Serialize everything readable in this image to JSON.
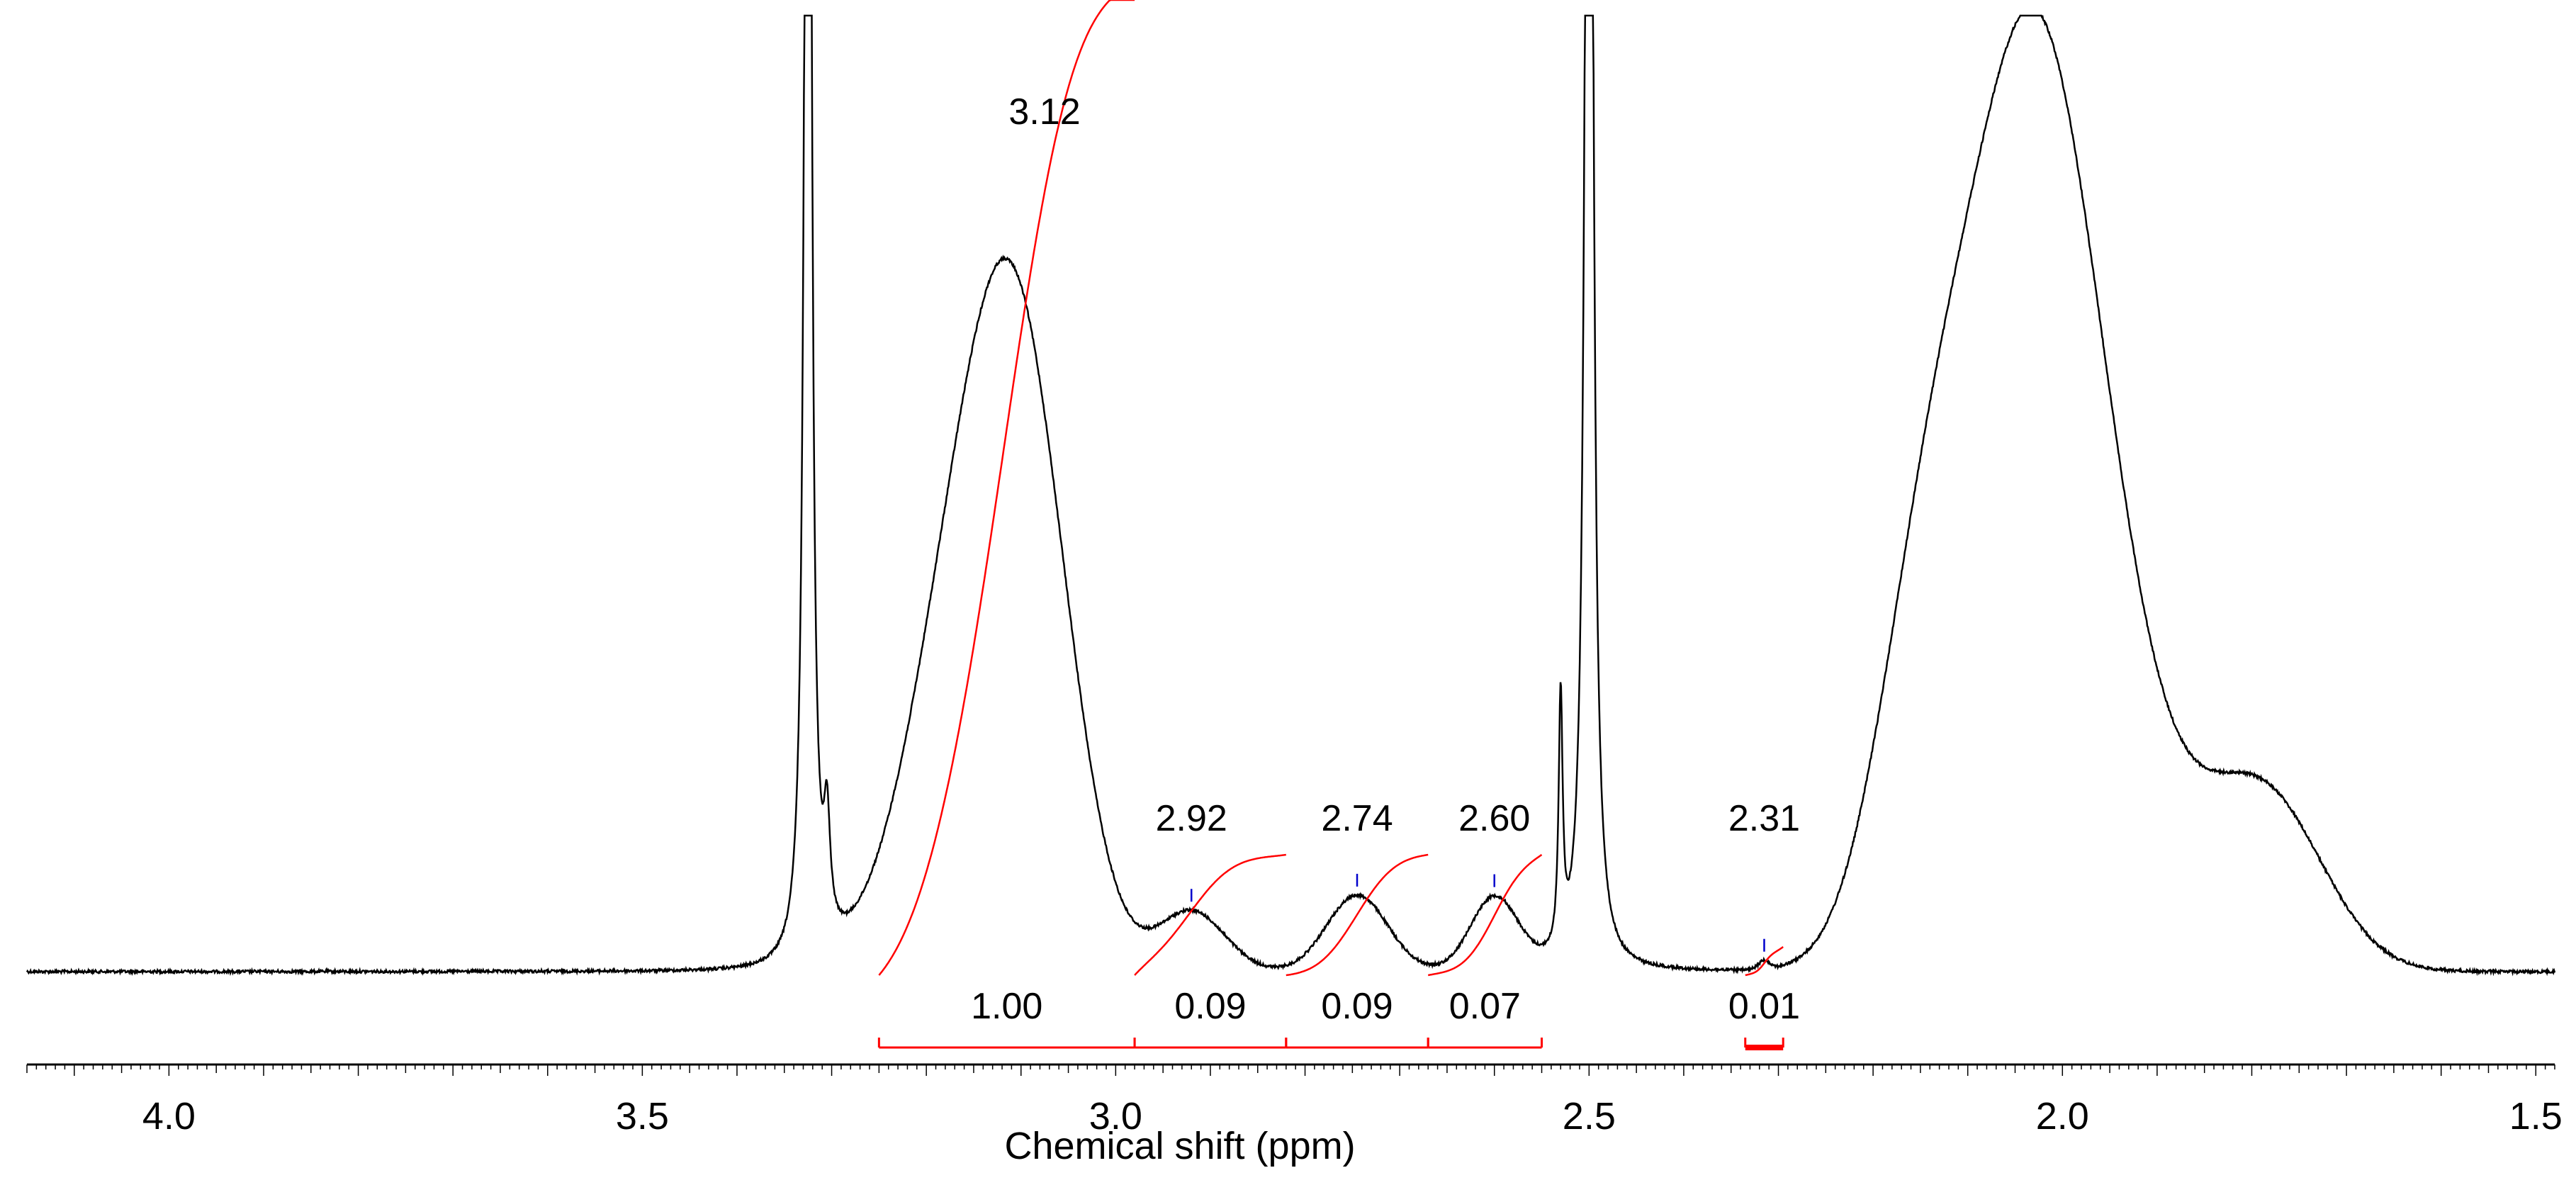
{
  "chart_data": {
    "type": "line",
    "title": "",
    "xlabel": "Chemical shift (ppm)",
    "ylabel": "",
    "xlim": [
      4.15,
      1.48
    ],
    "x_reversed": true,
    "grid": false,
    "ticks": [
      "4.0",
      "3.5",
      "3.0",
      "2.5",
      "2.0",
      "1.5"
    ],
    "tick_values": [
      4.0,
      3.5,
      3.0,
      2.5,
      2.0,
      1.5
    ],
    "minor_tick_step": 0.01,
    "colors": {
      "spectrum": "#000000",
      "integral": "#ff0000",
      "peak_marker": "#0000cc"
    },
    "peak_labels": [
      {
        "label": "3.12",
        "ppm": 3.12
      },
      {
        "label": "2.92",
        "ppm": 2.92
      },
      {
        "label": "2.74",
        "ppm": 2.745
      },
      {
        "label": "2.60",
        "ppm": 2.6
      },
      {
        "label": "2.31",
        "ppm": 2.315
      }
    ],
    "integrals": [
      {
        "label": "1.00",
        "start": 3.25,
        "end": 2.98,
        "value": 1.0
      },
      {
        "label": "0.09",
        "start": 2.98,
        "end": 2.82,
        "value": 0.09
      },
      {
        "label": "0.09",
        "start": 2.82,
        "end": 2.67,
        "value": 0.09
      },
      {
        "label": "0.07",
        "start": 2.67,
        "end": 2.55,
        "value": 0.07
      },
      {
        "label": "0.01",
        "start": 2.335,
        "end": 2.295,
        "value": 0.01
      }
    ],
    "spectrum_components": [
      {
        "shift": 3.325,
        "height": 3.0,
        "width": 0.0035,
        "shape": "lorentzian",
        "note": "solvent peak, clipped"
      },
      {
        "shift": 3.305,
        "height": 0.15,
        "width": 0.004,
        "shape": "lorentzian"
      },
      {
        "shift": 3.155,
        "height": 0.55,
        "width": 0.06,
        "shape": "gaussian"
      },
      {
        "shift": 3.095,
        "height": 0.59,
        "width": 0.05,
        "shape": "gaussian"
      },
      {
        "shift": 2.92,
        "height": 0.083,
        "width": 0.035,
        "shape": "gaussian"
      },
      {
        "shift": 2.745,
        "height": 0.105,
        "width": 0.032,
        "shape": "gaussian"
      },
      {
        "shift": 2.6,
        "height": 0.1,
        "width": 0.025,
        "shape": "gaussian"
      },
      {
        "shift": 2.53,
        "height": 0.35,
        "width": 0.0025,
        "shape": "lorentzian"
      },
      {
        "shift": 2.5,
        "height": 3.0,
        "width": 0.004,
        "shape": "lorentzian",
        "note": "solvent peak, clipped"
      },
      {
        "shift": 2.315,
        "height": 0.012,
        "width": 0.006,
        "shape": "gaussian"
      },
      {
        "shift": 2.03,
        "height": 1.3,
        "width": 0.075,
        "shape": "gaussian"
      },
      {
        "shift": 2.15,
        "height": 0.35,
        "width": 0.05,
        "shape": "gaussian"
      },
      {
        "shift": 1.78,
        "height": 0.18,
        "width": 0.06,
        "shape": "gaussian"
      },
      {
        "shift": 1.86,
        "height": 0.12,
        "width": 0.08,
        "shape": "gaussian"
      }
    ],
    "clip_at_top": true
  }
}
